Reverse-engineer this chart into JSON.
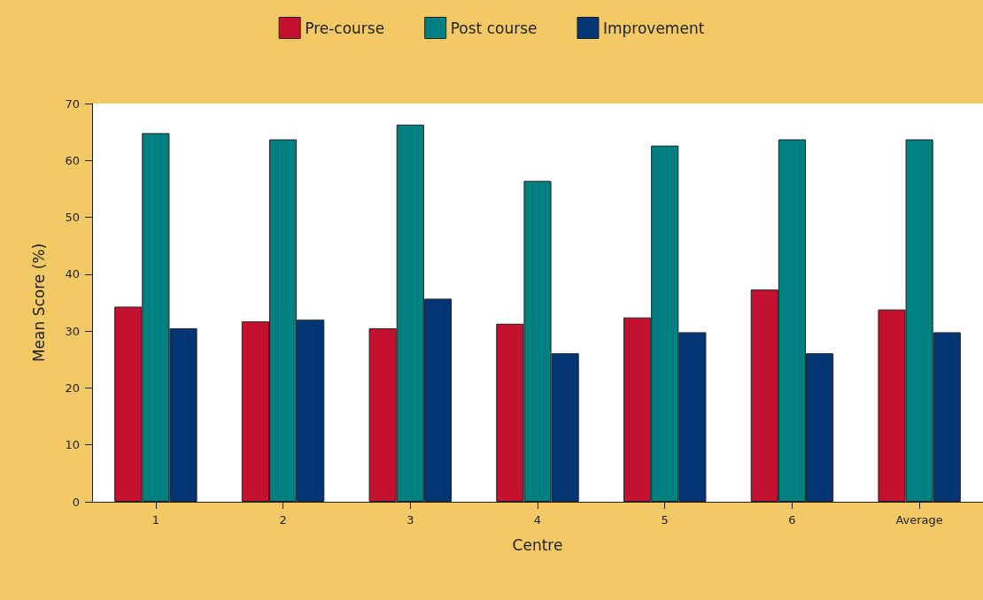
{
  "chart_data": {
    "type": "bar",
    "xlabel": "Centre",
    "ylabel": "Mean Score (%)",
    "categories": [
      "1",
      "2",
      "3",
      "4",
      "5",
      "6",
      "Average"
    ],
    "series": [
      {
        "name": "Pre-course",
        "color": "#c3112f",
        "values": [
          34.3,
          31.7,
          30.5,
          31.3,
          32.4,
          37.3,
          33.8
        ]
      },
      {
        "name": "Post course",
        "color": "#008080",
        "values": [
          64.8,
          63.7,
          66.3,
          56.4,
          62.6,
          63.7,
          63.7
        ]
      },
      {
        "name": "Improvement",
        "color": "#033574",
        "values": [
          30.5,
          32.0,
          35.7,
          26.1,
          29.8,
          26.1,
          29.8
        ]
      }
    ],
    "ylim": [
      0,
      70
    ],
    "yticks": [
      0,
      10,
      20,
      30,
      40,
      50,
      60,
      70
    ],
    "grid": false,
    "legend": "top"
  }
}
